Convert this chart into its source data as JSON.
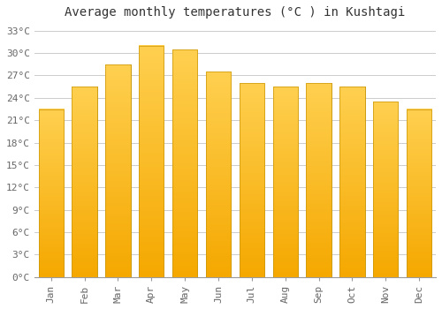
{
  "title": "Average monthly temperatures (°C ) in Kushtagi",
  "months": [
    "Jan",
    "Feb",
    "Mar",
    "Apr",
    "May",
    "Jun",
    "Jul",
    "Aug",
    "Sep",
    "Oct",
    "Nov",
    "Dec"
  ],
  "values": [
    22.5,
    25.5,
    28.5,
    31.0,
    30.5,
    27.5,
    26.0,
    25.5,
    26.0,
    25.5,
    23.5,
    22.5
  ],
  "bar_color_top": "#FFCC44",
  "bar_color_bottom": "#F5A800",
  "bar_edge_color": "#C8960A",
  "background_color": "#ffffff",
  "grid_color": "#cccccc",
  "ylim": [
    0,
    34
  ],
  "yticks": [
    0,
    3,
    6,
    9,
    12,
    15,
    18,
    21,
    24,
    27,
    30,
    33
  ],
  "ylabel_suffix": "°C",
  "title_fontsize": 10,
  "tick_fontsize": 8,
  "font_family": "monospace"
}
